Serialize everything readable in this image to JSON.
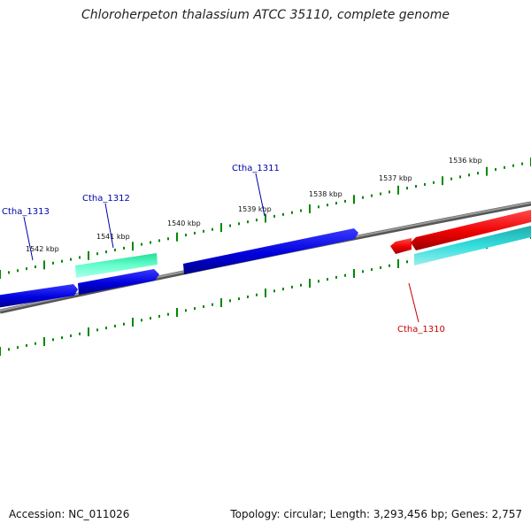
{
  "title": "Chloroherpeton thalassium ATCC 35110, complete genome",
  "footer": {
    "accession": "Accession: NC_011026",
    "summary": "Topology: circular; Length: 3,293,456 bp; Genes: 2,757"
  },
  "scale_labels": [
    "1536 kbp",
    "1537 kbp",
    "1538 kbp",
    "1539 kbp",
    "1540 kbp",
    "1541 kbp",
    "1542 kbp"
  ],
  "genes": [
    {
      "name": "Ctha_1310",
      "color": "#cc0000"
    },
    {
      "name": "Ctha_1311",
      "color": "#0000aa"
    },
    {
      "name": "Ctha_1312",
      "color": "#0000aa"
    },
    {
      "name": "Ctha_1313",
      "color": "#0000aa"
    }
  ],
  "colors": {
    "forward": "#0000ee",
    "reverse": "#ff0000",
    "rna": "#33ffaa",
    "other": "#33cccc",
    "backbone": "#808080",
    "ticks": "#008800"
  }
}
